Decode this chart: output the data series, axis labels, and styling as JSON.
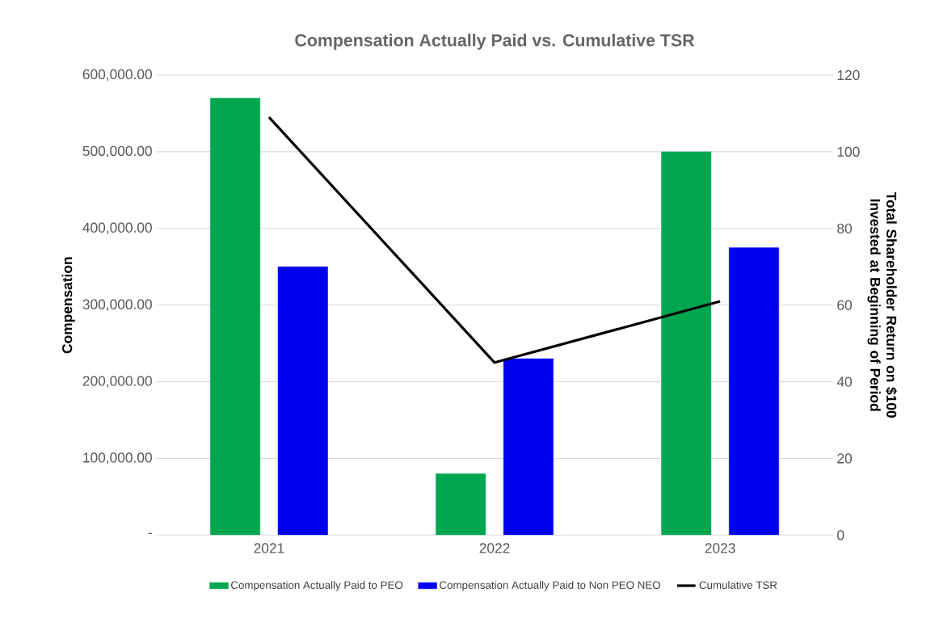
{
  "chart_data": {
    "type": "bar",
    "title": "Compensation Actually Paid vs. Cumulative TSR",
    "categories": [
      "2021",
      "2022",
      "2023"
    ],
    "series": [
      {
        "name": "Compensation Actually Paid to PEO",
        "color": "#00a64f",
        "values": [
          570000,
          80000,
          500000
        ]
      },
      {
        "name": "Compensation Actually Paid to Non PEO NEO",
        "color": "#0000ee",
        "values": [
          350000,
          230000,
          375000
        ]
      },
      {
        "name": "Cumulative TSR",
        "type": "line",
        "axis": "y2",
        "color": "#000000",
        "line_style": "solid",
        "values": [
          109,
          45,
          61
        ]
      }
    ],
    "ylabel": "Compensation",
    "y2label": "Total Shareholder Return on $100 Invested at Beginning of Period",
    "ylim": [
      0,
      600000
    ],
    "yticks": [
      {
        "value": 0,
        "label": "-"
      },
      {
        "value": 100000,
        "label": "100,000.00"
      },
      {
        "value": 200000,
        "label": "200,000.00"
      },
      {
        "value": 300000,
        "label": "300,000.00"
      },
      {
        "value": 400000,
        "label": "400,000.00"
      },
      {
        "value": 500000,
        "label": "500,000.00"
      },
      {
        "value": 600000,
        "label": "600,000.00"
      }
    ],
    "y2lim": [
      0,
      120
    ],
    "y2ticks": [
      0,
      20,
      40,
      60,
      80,
      100,
      120
    ],
    "grid": "y",
    "legend": "bottom",
    "marker": "none"
  }
}
